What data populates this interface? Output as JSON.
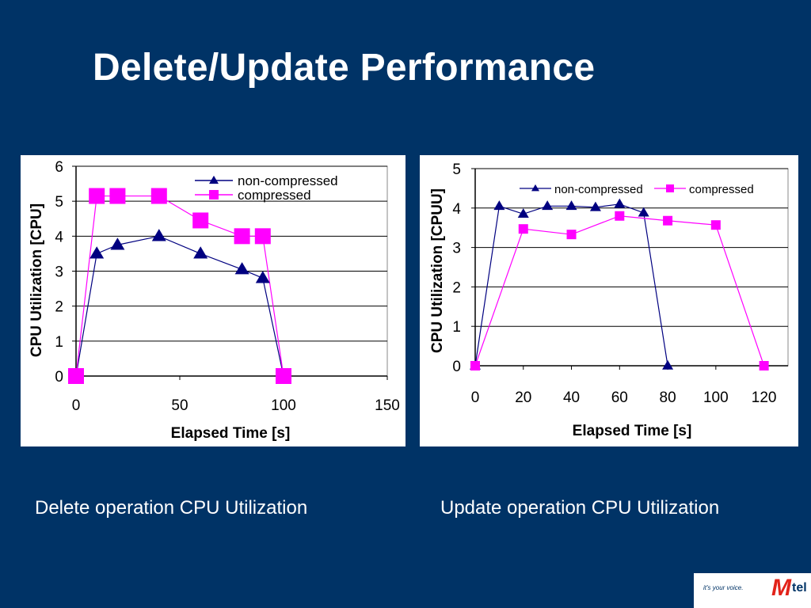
{
  "slide": {
    "title": "Delete/Update Performance",
    "captions": {
      "delete": "Delete operation CPU Utilization",
      "update": "Update operation CPU Utilization"
    },
    "logo": {
      "tagline": "it's your voice.",
      "brand_letter": "M",
      "brand_suffix": "tel"
    }
  },
  "colors": {
    "background": "#003366",
    "non_compressed": "#000080",
    "compressed": "#ff00ff",
    "logo_red": "#e2231a"
  },
  "chart_data": [
    {
      "id": "delete",
      "type": "line",
      "title": "",
      "xlabel": "Elapsed Time [s]",
      "ylabel": "CPU Utilization [CPU]",
      "xlim": [
        0,
        150
      ],
      "ylim": [
        0,
        6
      ],
      "xticks": [
        0,
        50,
        100,
        150
      ],
      "yticks": [
        0,
        1,
        2,
        3,
        4,
        5,
        6
      ],
      "grid": "horizontal",
      "legend_position": "top-right",
      "legend_layout": "stacked",
      "series": [
        {
          "name": "non-compressed",
          "marker": "triangle",
          "color": "#000080",
          "points": [
            [
              0,
              0
            ],
            [
              10,
              3.5
            ],
            [
              20,
              3.75
            ],
            [
              40,
              4.0
            ],
            [
              60,
              3.5
            ],
            [
              80,
              3.05
            ],
            [
              90,
              2.8
            ],
            [
              100,
              0
            ]
          ]
        },
        {
          "name": "compressed",
          "marker": "square",
          "color": "#ff00ff",
          "points": [
            [
              0,
              0
            ],
            [
              10,
              5.15
            ],
            [
              20,
              5.15
            ],
            [
              40,
              5.15
            ],
            [
              60,
              4.45
            ],
            [
              80,
              4.0
            ],
            [
              90,
              4.0
            ],
            [
              100,
              0
            ]
          ]
        }
      ]
    },
    {
      "id": "update",
      "type": "line",
      "title": "",
      "xlabel": "Elapsed Time [s]",
      "ylabel": "CPU Utilization [CPUU]",
      "xlim": [
        0,
        130
      ],
      "ylim": [
        0,
        5
      ],
      "xticks": [
        0,
        20,
        40,
        60,
        80,
        100,
        120
      ],
      "yticks": [
        0,
        1,
        2,
        3,
        4,
        5
      ],
      "grid": "horizontal",
      "legend_position": "top",
      "legend_layout": "inline",
      "series": [
        {
          "name": "non-compressed",
          "marker": "triangle",
          "color": "#000080",
          "points": [
            [
              0,
              0
            ],
            [
              10,
              4.05
            ],
            [
              20,
              3.85
            ],
            [
              30,
              4.05
            ],
            [
              40,
              4.05
            ],
            [
              50,
              4.02
            ],
            [
              60,
              4.1
            ],
            [
              70,
              3.88
            ],
            [
              80,
              0
            ]
          ]
        },
        {
          "name": "compressed",
          "marker": "square",
          "color": "#ff00ff",
          "points": [
            [
              0,
              0
            ],
            [
              20,
              3.47
            ],
            [
              40,
              3.33
            ],
            [
              60,
              3.8
            ],
            [
              80,
              3.68
            ],
            [
              100,
              3.57
            ],
            [
              120,
              0
            ]
          ]
        }
      ]
    }
  ]
}
